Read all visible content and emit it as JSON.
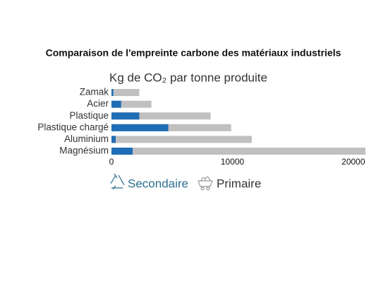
{
  "chart_data": {
    "type": "overlap-barh",
    "title": "Comparaison de l'empreinte carbone des matériaux industriels",
    "subtitle": "Kg de CO₂  par tonne produite",
    "categories": [
      "Zamak",
      "Acier",
      "Plastique",
      "Plastique chargé",
      "Aluminium",
      "Magnésium"
    ],
    "series": [
      {
        "name": "Primaire",
        "color": "#c0c0c0",
        "values": [
          2300,
          3300,
          8200,
          9900,
          11600,
          21000
        ]
      },
      {
        "name": "Secondaire",
        "color": "#1f6db5",
        "values": [
          150,
          800,
          2300,
          4700,
          350,
          1750
        ]
      }
    ],
    "xlim": [
      0,
      21000
    ],
    "xticks": [
      0,
      10000,
      20000
    ],
    "grid": false
  }
}
